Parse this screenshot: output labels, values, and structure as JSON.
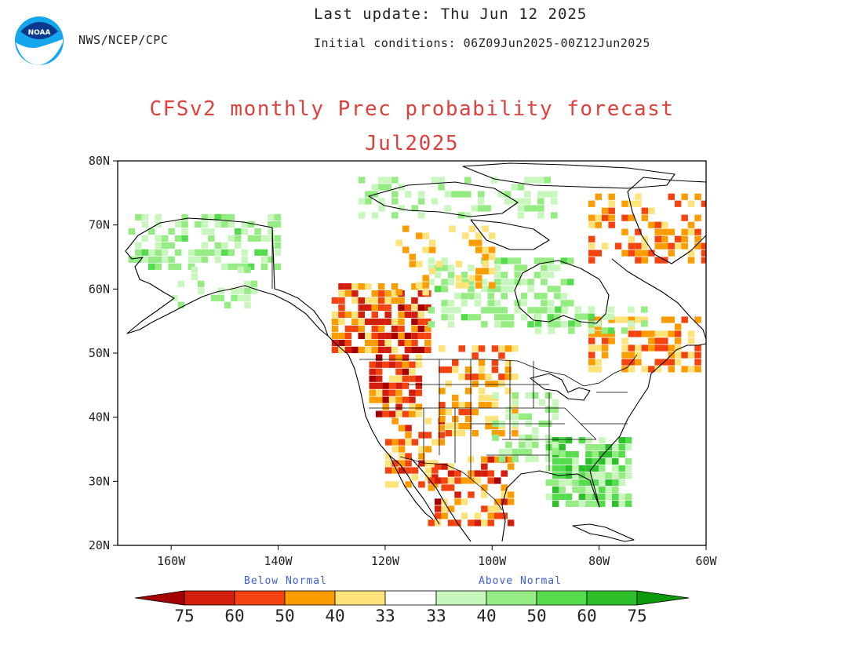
{
  "header": {
    "agency": "NWS/NCEP/CPC",
    "last_update": "Last update: Thu Jun 12 2025",
    "initial_conditions": "Initial conditions: 06Z09Jun2025-00Z12Jun2025",
    "logo_text": "NOAA"
  },
  "title": "CFSv2 monthly Prec probability forecast",
  "subtitle": "Jul2025",
  "map": {
    "lon_range": [
      -170,
      -60
    ],
    "lat_range": [
      20,
      80
    ],
    "lat_ticks": [
      {
        "value": 80,
        "label": "80N"
      },
      {
        "value": 70,
        "label": "70N"
      },
      {
        "value": 60,
        "label": "60N"
      },
      {
        "value": 50,
        "label": "50N"
      },
      {
        "value": 40,
        "label": "40N"
      },
      {
        "value": 30,
        "label": "30N"
      },
      {
        "value": 20,
        "label": "20N"
      }
    ],
    "lon_ticks": [
      {
        "value": -160,
        "label": "160W"
      },
      {
        "value": -140,
        "label": "140W"
      },
      {
        "value": -120,
        "label": "120W"
      },
      {
        "value": -100,
        "label": "100W"
      },
      {
        "value": -80,
        "label": "80W"
      },
      {
        "value": -60,
        "label": "60W"
      }
    ]
  },
  "legend": {
    "below_label": "Below Normal",
    "above_label": "Above Normal",
    "below": [
      {
        "label": "75",
        "color": "#a50000"
      },
      {
        "label": "60",
        "color": "#d31d0d"
      },
      {
        "label": "50",
        "color": "#f4430e"
      },
      {
        "label": "40",
        "color": "#fb9c00"
      },
      {
        "label": "33",
        "color": "#fde37a"
      }
    ],
    "above": [
      {
        "label": "33",
        "color": "#c8f7bd"
      },
      {
        "label": "40",
        "color": "#94ec82"
      },
      {
        "label": "50",
        "color": "#55dc4d"
      },
      {
        "label": "60",
        "color": "#2dc02a"
      },
      {
        "label": "75",
        "color": "#0b9a0c"
      }
    ]
  },
  "colors": {
    "title": "#e0403c",
    "legend_labels": "#3a5fd8"
  }
}
